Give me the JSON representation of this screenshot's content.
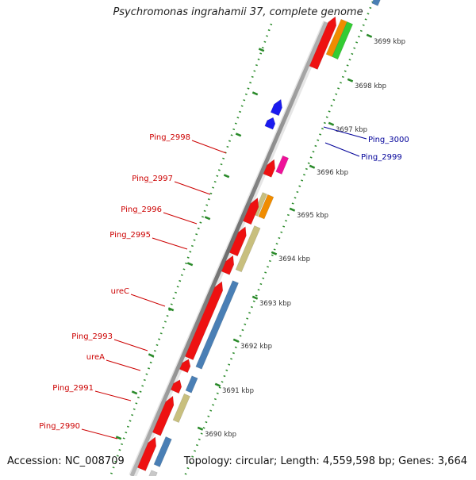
{
  "title": "Psychromonas ingrahamii 37, complete genome",
  "accession": "Accession: NC_008709",
  "topology": "Topology: circular; Length: 4,559,598 bp; Genes: 3,664",
  "ruler_labels": [
    "3699 kbp",
    "3698 kbp",
    "3697 kbp",
    "3696 kbp",
    "3695 kbp",
    "3694 kbp",
    "3693 kbp",
    "3692 kbp",
    "3691 kbp",
    "3690 kbp"
  ],
  "gene_labels_left": [
    "Ping_2998",
    "Ping_2997",
    "Ping_2996",
    "Ping_2995",
    "ureC",
    "Ping_2993",
    "ureA",
    "Ping_2991",
    "Ping_2990"
  ],
  "gene_labels_right": [
    "Ping_3000",
    "Ping_2999"
  ],
  "colors": {
    "label_red": "#cc0000",
    "label_blue": "#000099",
    "ruler_green": "#2a8a2a",
    "cds_red": "#ee1111",
    "cds_blue": "#1a1aee",
    "blue_steel": "#4a7fb5",
    "khaki": "#c8bf7e",
    "orange": "#f08c00",
    "green": "#33cc33",
    "magenta": "#ee1199",
    "backbone_gray": "#8a8a8a"
  }
}
